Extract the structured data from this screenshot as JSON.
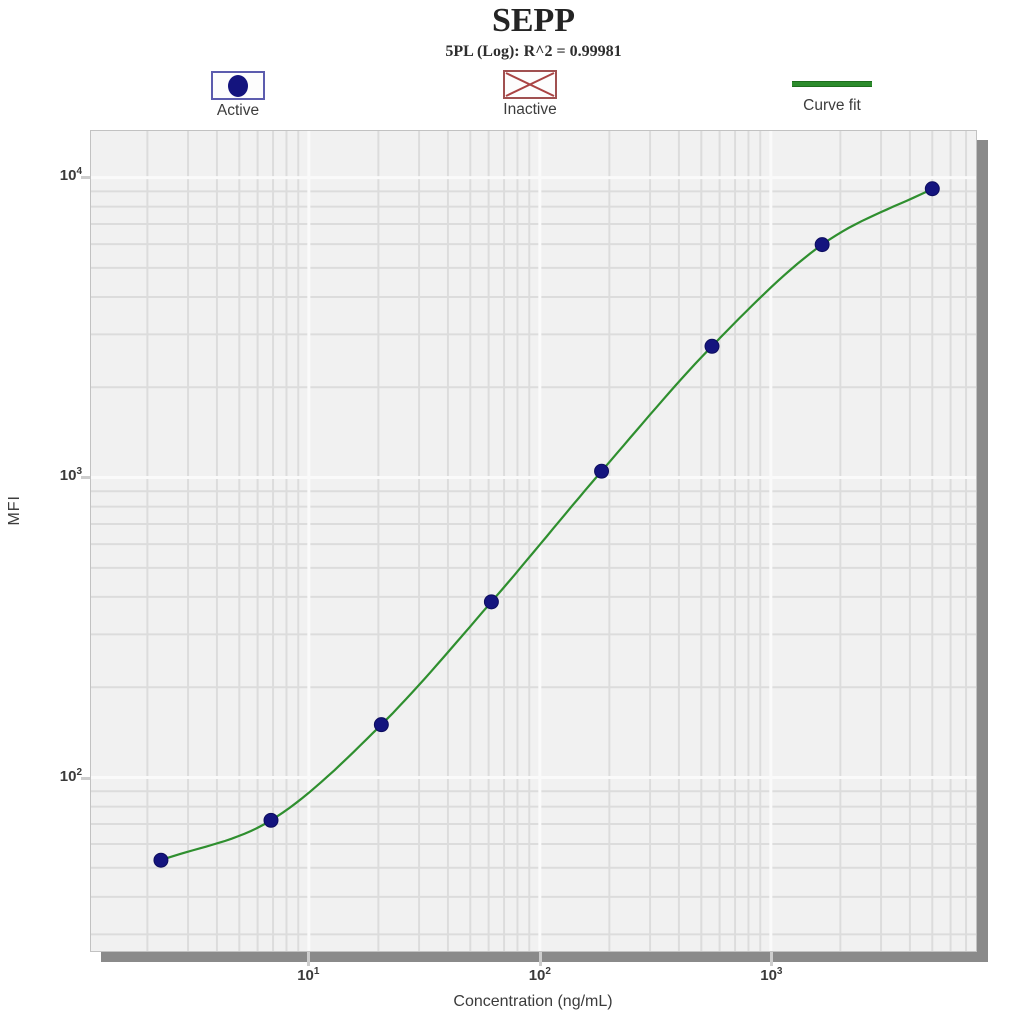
{
  "header": {
    "title": "SEPP",
    "subtitle": "5PL (Log): R^2 = 0.99981"
  },
  "legend": {
    "items": [
      {
        "label": "Active"
      },
      {
        "label": "Inactive"
      },
      {
        "label": "Curve fit"
      }
    ]
  },
  "axes": {
    "x_title": "Concentration (ng/mL)",
    "y_title": "MFI"
  },
  "colors": {
    "plot_bg": "#f1f1f1",
    "grid_minor": "#dcdcdc",
    "grid_major": "#fafafa",
    "plot_border": "#c2c2c2",
    "shadow": "#8a8a8a",
    "curve_line": "#2f8f2f",
    "active_marker": "#14147e",
    "active_marker_edge": "#0d0d5e",
    "active_box_border": "#5c5cae",
    "inactive_box_border": "#a05050",
    "inactive_x": "#aa4444",
    "text": "#3c3c3c"
  },
  "chart_data": {
    "type": "scatter",
    "title": "SEPP",
    "subtitle": "5PL (Log): R^2 = 0.99981",
    "fit_model": "5PL (Log)",
    "r_squared": 0.99981,
    "xlabel": "Concentration (ng/mL)",
    "ylabel": "MFI",
    "x_scale": "log10",
    "y_scale": "log10",
    "grid": true,
    "legend_position": "top",
    "legend_entries": [
      "Active",
      "Inactive",
      "Curve fit"
    ],
    "xlim": [
      1.14,
      7730
    ],
    "ylim": [
      26.4,
      14300
    ],
    "x_ticks": [
      {
        "value": 10,
        "base": "10",
        "exp": "1"
      },
      {
        "value": 100,
        "base": "10",
        "exp": "2"
      },
      {
        "value": 1000,
        "base": "10",
        "exp": "3"
      }
    ],
    "y_ticks": [
      {
        "value": 100,
        "base": "10",
        "exp": "2"
      },
      {
        "value": 1000,
        "base": "10",
        "exp": "3"
      },
      {
        "value": 10000,
        "base": "10",
        "exp": "4"
      }
    ],
    "series": [
      {
        "name": "Active",
        "role": "standard-points",
        "marker": "filled-circle",
        "points": [
          {
            "x": 2.29,
            "y": 53
          },
          {
            "x": 6.86,
            "y": 72
          },
          {
            "x": 20.6,
            "y": 150
          },
          {
            "x": 61.7,
            "y": 385
          },
          {
            "x": 185,
            "y": 1050
          },
          {
            "x": 556,
            "y": 2740
          },
          {
            "x": 1667,
            "y": 5980
          },
          {
            "x": 5000,
            "y": 9180
          }
        ]
      },
      {
        "name": "Inactive",
        "role": "excluded-points",
        "marker": "crossed-box",
        "points": []
      },
      {
        "name": "Curve fit",
        "role": "fit-curve",
        "style": "smooth-line-through-active-points"
      }
    ]
  }
}
